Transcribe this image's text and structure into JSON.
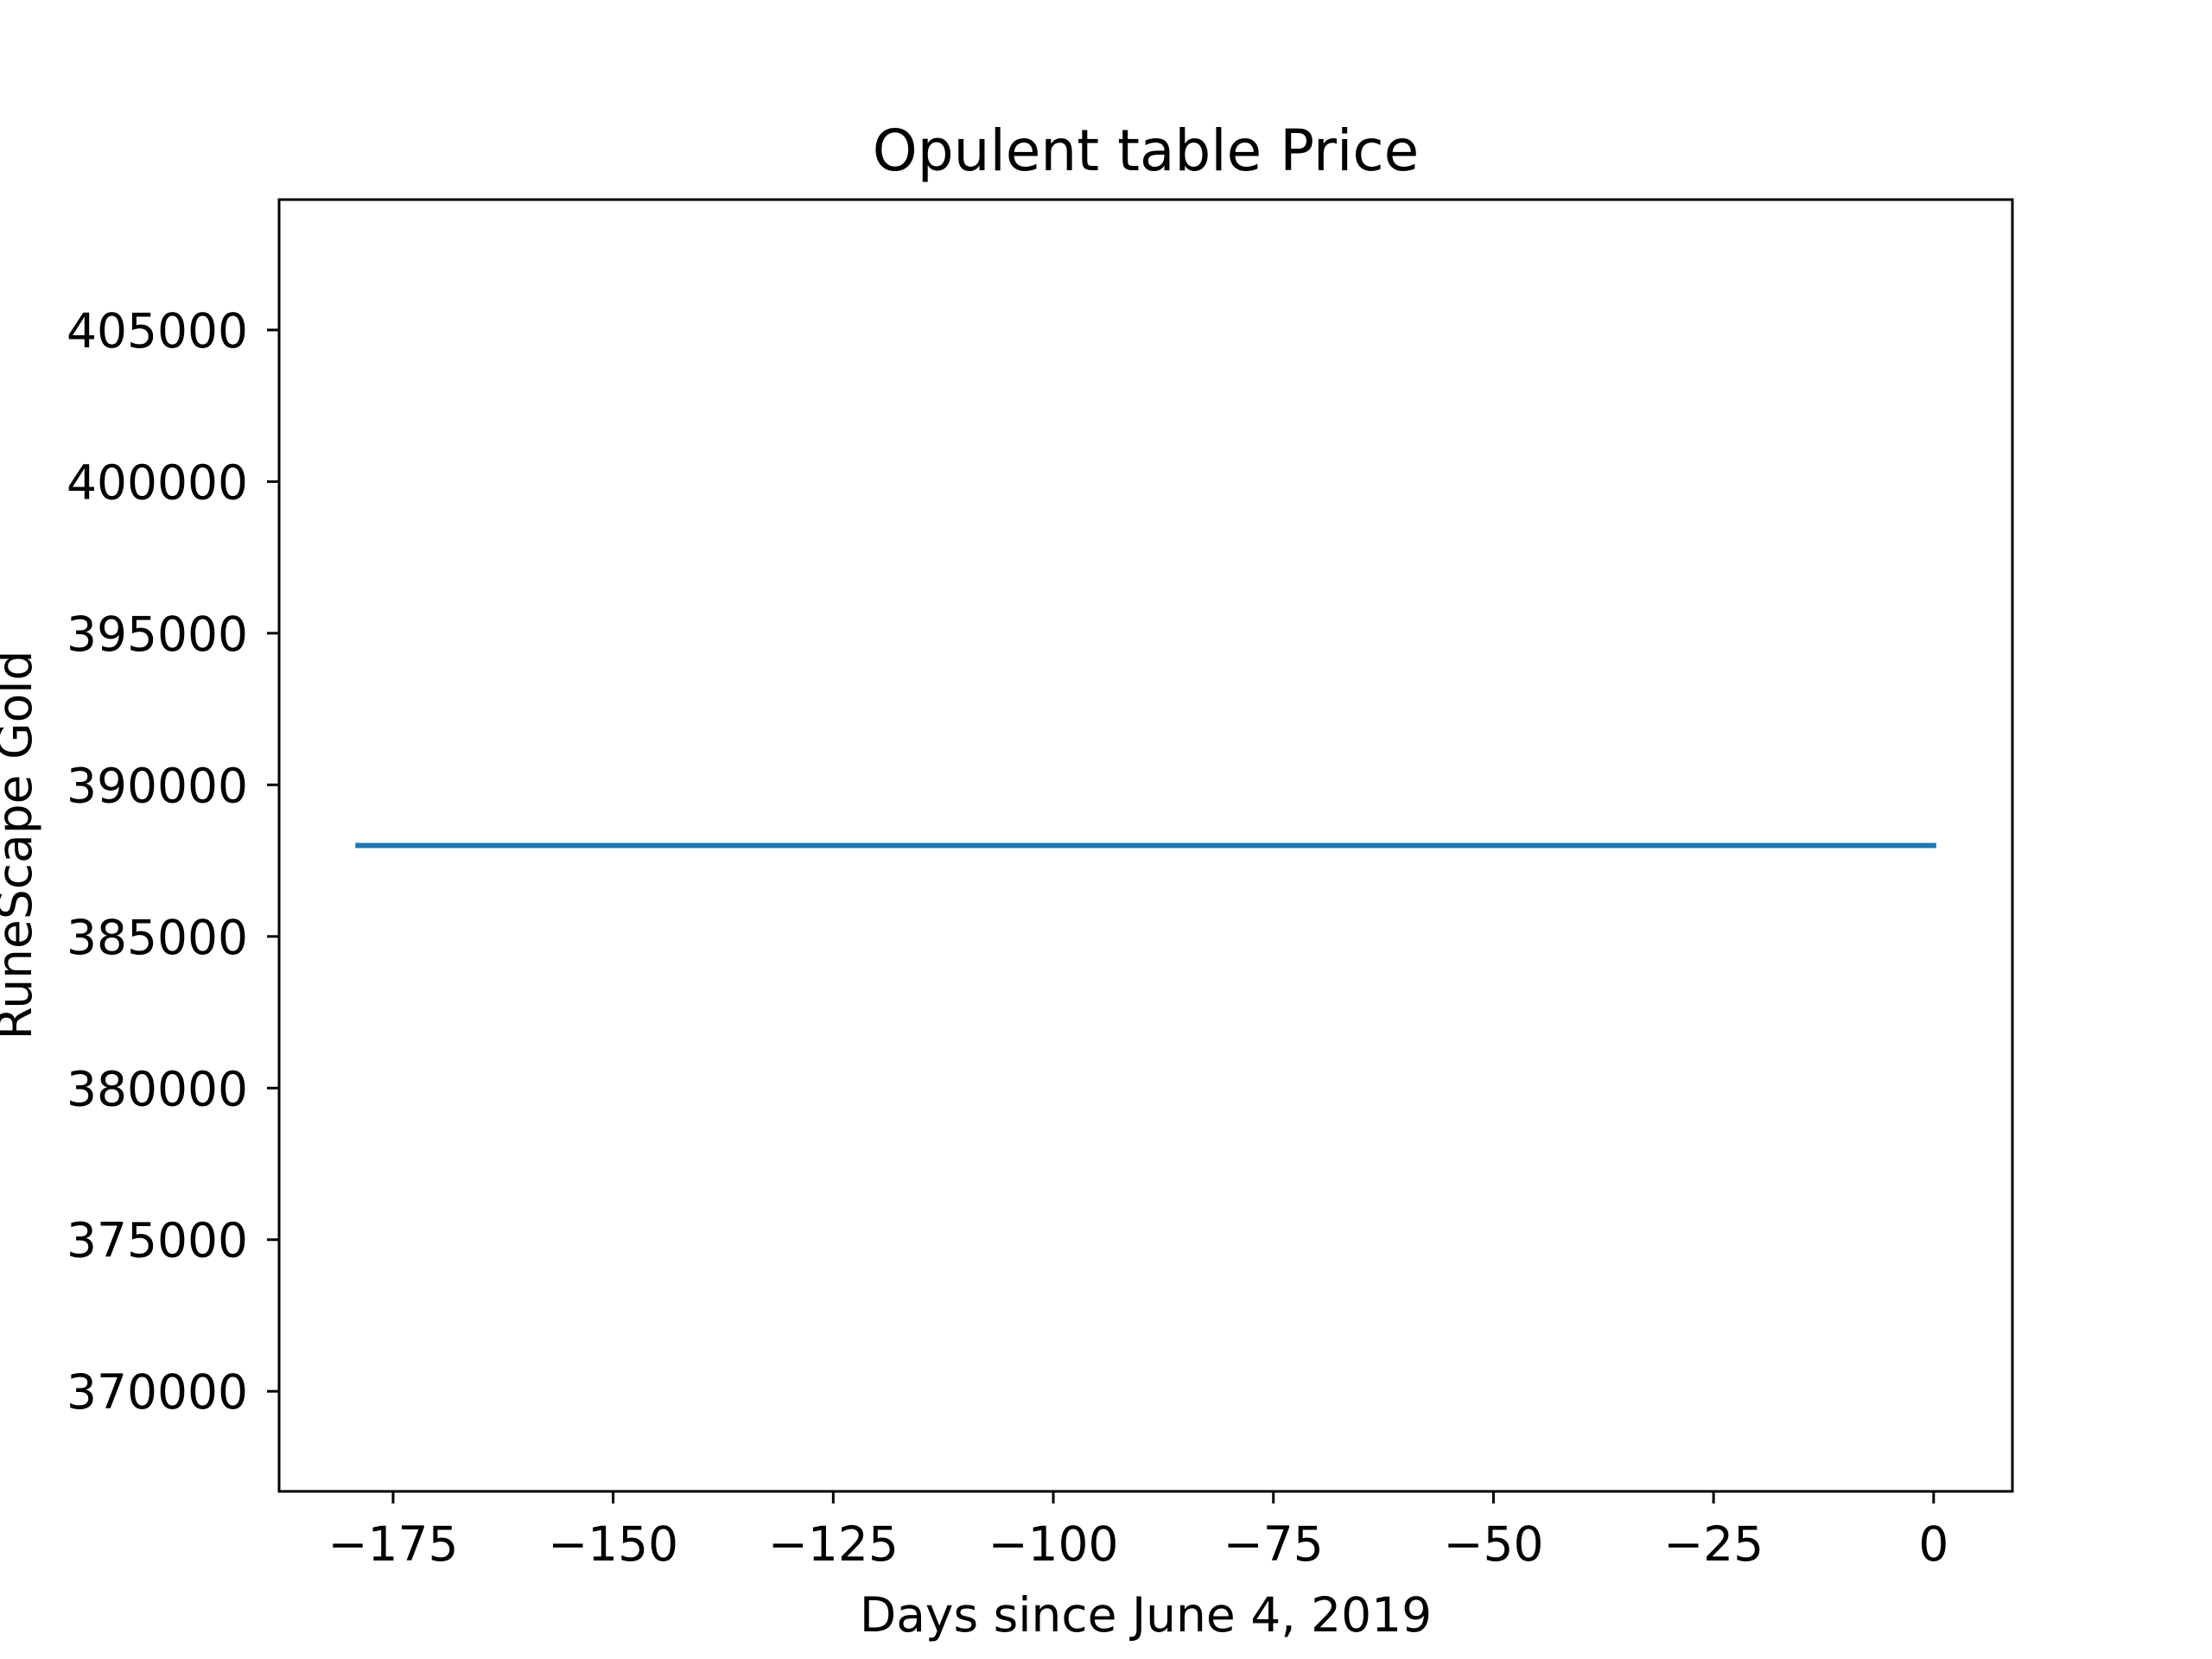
{
  "chart_data": {
    "type": "line",
    "title": "Opulent table Price",
    "xlabel": "Days since June 4, 2019",
    "ylabel": "RuneScape Gold",
    "xlim": [
      -187.95,
      8.95
    ],
    "ylim": [
      366700,
      409300
    ],
    "xticks": [
      -175,
      -150,
      -125,
      -100,
      -75,
      -50,
      -25,
      0
    ],
    "xtick_labels": [
      "−175",
      "−150",
      "−125",
      "−100",
      "−75",
      "−50",
      "−25",
      "0"
    ],
    "yticks": [
      370000,
      375000,
      380000,
      385000,
      390000,
      395000,
      400000,
      405000
    ],
    "ytick_labels": [
      "370000",
      "375000",
      "380000",
      "385000",
      "390000",
      "395000",
      "400000",
      "405000"
    ],
    "grid": false,
    "series": [
      {
        "x": [
          -179,
          0
        ],
        "y": [
          388000,
          388000
        ],
        "color": "#1f77b4"
      }
    ]
  }
}
